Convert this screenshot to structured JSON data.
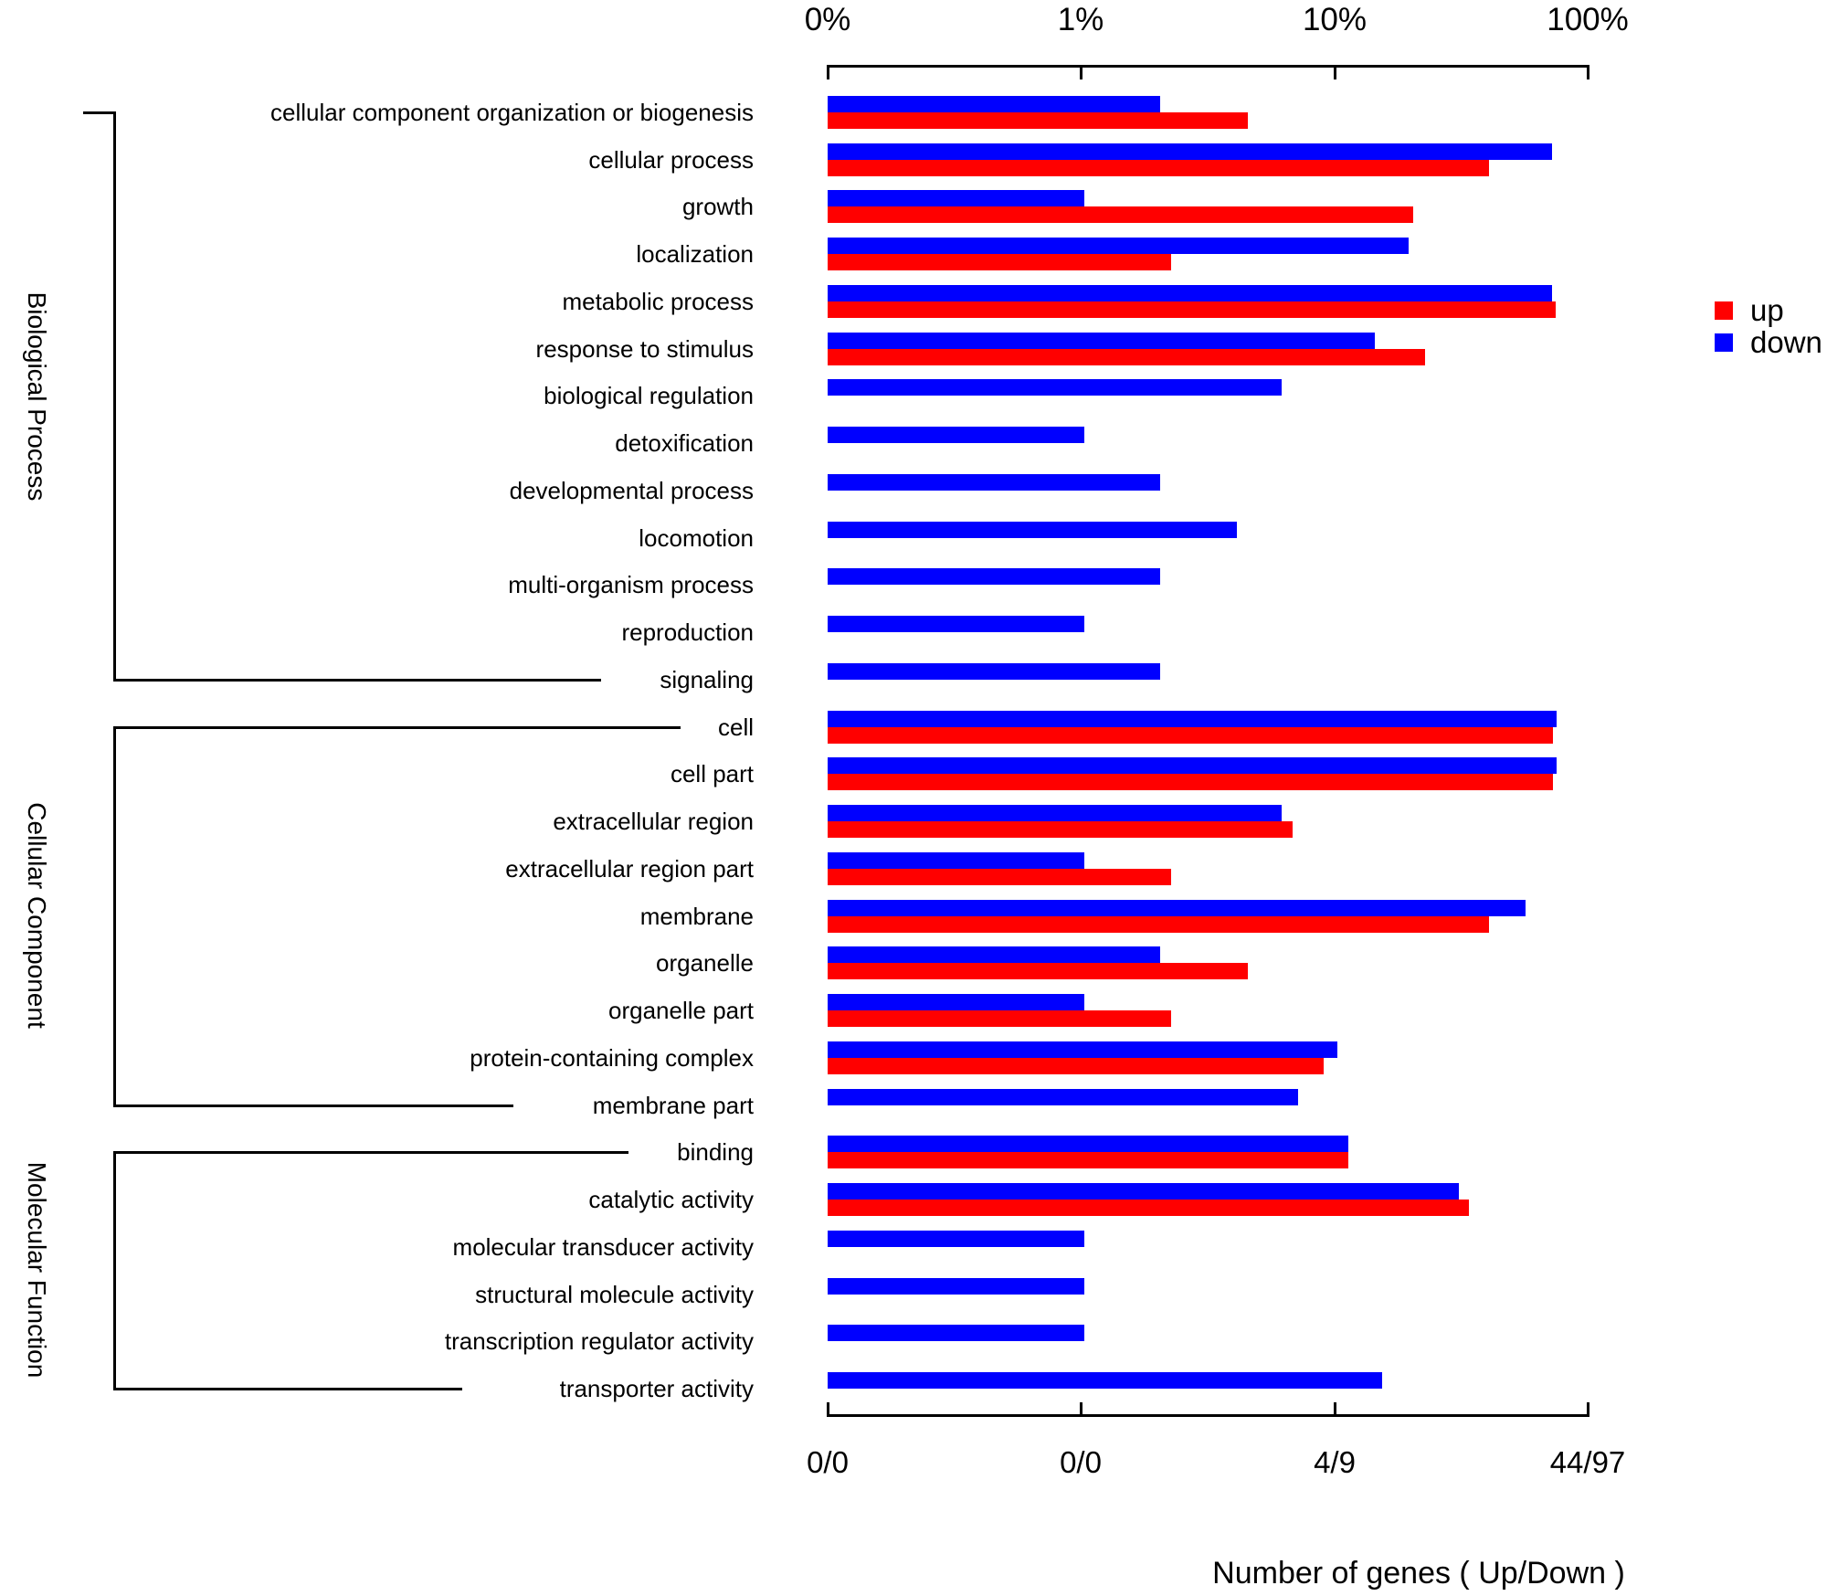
{
  "chart_data": {
    "type": "bar",
    "orientation": "horizontal",
    "subtype": "WEGO-style GO annotation chart, paired up/down bars per GO term",
    "scale": "three-decade log percentage x-axis (0%, 1%, 10%, 100%); percent of total up/down genes",
    "xlabel": "Number of genes ( Up/Down )",
    "top_axis_tick_labels": [
      "0%",
      "1%",
      "10%",
      "100%"
    ],
    "bottom_axis_tick_labels": [
      "0/0",
      "0/0",
      "4/9",
      "44/97"
    ],
    "totals": {
      "up_total": 44,
      "down_total": 97
    },
    "series_colors": {
      "up": "#ff0000",
      "down": "#0000ff"
    },
    "legend": [
      {
        "name": "up",
        "color": "#ff0000"
      },
      {
        "name": "down",
        "color": "#0000ff"
      }
    ],
    "legend_position": "right",
    "grid": false,
    "groups": [
      {
        "name": "Biological Process",
        "categories": [
          {
            "label": "cellular component organization or biogenesis",
            "up": 2,
            "down": 2
          },
          {
            "label": "cellular process",
            "up": 18,
            "down": 70
          },
          {
            "label": "growth",
            "up": 9,
            "down": 1
          },
          {
            "label": "localization",
            "up": 1,
            "down": 19
          },
          {
            "label": "metabolic process",
            "up": 33,
            "down": 70
          },
          {
            "label": "response to stimulus",
            "up": 10,
            "down": 14
          },
          {
            "label": "biological regulation",
            "up": null,
            "down": 6
          },
          {
            "label": "detoxification",
            "up": null,
            "down": 1
          },
          {
            "label": "developmental process",
            "up": null,
            "down": 2
          },
          {
            "label": "locomotion",
            "up": null,
            "down": 4
          },
          {
            "label": "multi-organism process",
            "up": null,
            "down": 2
          },
          {
            "label": "reproduction",
            "up": null,
            "down": 1
          },
          {
            "label": "signaling",
            "up": null,
            "down": 2
          }
        ]
      },
      {
        "name": "Cellular Component",
        "categories": [
          {
            "label": "cell",
            "up": 32,
            "down": 73
          },
          {
            "label": "cell part",
            "up": 32,
            "down": 73
          },
          {
            "label": "extracellular region",
            "up": 3,
            "down": 6
          },
          {
            "label": "extracellular region part",
            "up": 1,
            "down": 1
          },
          {
            "label": "membrane",
            "up": 18,
            "down": 55
          },
          {
            "label": "organelle",
            "up": 2,
            "down": 2
          },
          {
            "label": "organelle part",
            "up": 1,
            "down": 1
          },
          {
            "label": "protein-containing complex",
            "up": 4,
            "down": 10
          },
          {
            "label": "membrane part",
            "up": null,
            "down": 7
          }
        ]
      },
      {
        "name": "Molecular Function",
        "categories": [
          {
            "label": "binding",
            "up": 5,
            "down": 11
          },
          {
            "label": "catalytic activity",
            "up": 15,
            "down": 30
          },
          {
            "label": "molecular transducer activity",
            "up": null,
            "down": 1
          },
          {
            "label": "structural molecule activity",
            "up": null,
            "down": 1
          },
          {
            "label": "transcription regulator activity",
            "up": null,
            "down": 1
          },
          {
            "label": "transporter activity",
            "up": null,
            "down": 15
          }
        ]
      }
    ]
  }
}
